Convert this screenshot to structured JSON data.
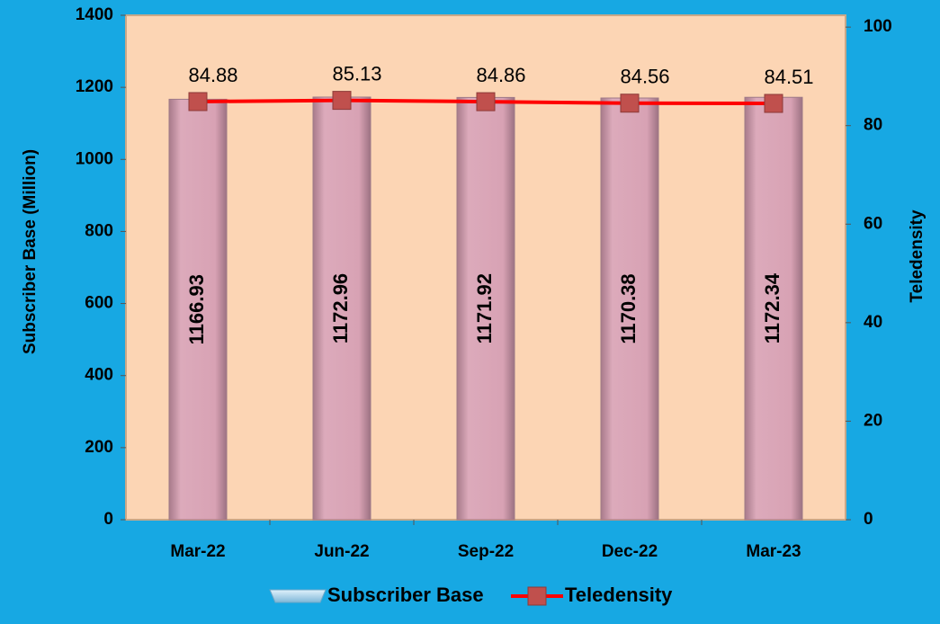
{
  "chart_data": {
    "type": "bar_line",
    "categories": [
      "Mar-22",
      "Jun-22",
      "Sep-22",
      "Dec-22",
      "Mar-23"
    ],
    "series": [
      {
        "name": "Subscriber Base",
        "type": "bar",
        "color": "#d9a3b5",
        "values": [
          1166.93,
          1172.96,
          1171.92,
          1170.38,
          1172.34
        ]
      },
      {
        "name": "Teledensity",
        "type": "line",
        "axis": "y2",
        "color": "#ff0000",
        "marker_color": "#c0504d",
        "values": [
          84.88,
          85.13,
          84.86,
          84.56,
          84.51
        ]
      }
    ],
    "ylabel": "Subscriber Base (Million)",
    "y2label": "Teledensity",
    "ylim": [
      0,
      1400
    ],
    "yticks": [
      0,
      200,
      400,
      600,
      800,
      1000,
      1200,
      1400
    ],
    "y2lim": [
      0,
      102.4
    ],
    "y2ticks": [
      0,
      20,
      40,
      60,
      80,
      100
    ],
    "legend": "bottom"
  }
}
